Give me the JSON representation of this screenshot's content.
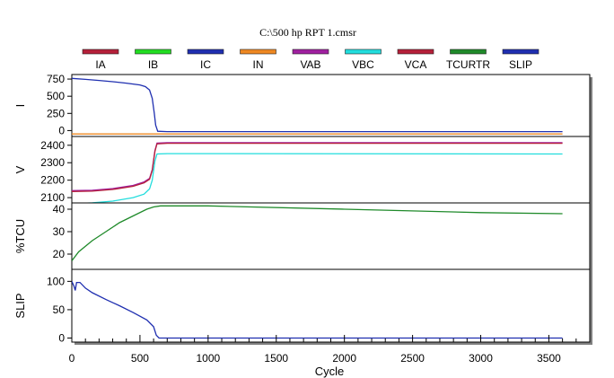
{
  "chart_data": {
    "type": "line",
    "title": "C:\\500 hp RPT 1.cmsr",
    "xlabel": "Cycle",
    "x_ticks": [
      "0",
      "500",
      "1000",
      "1500",
      "2000",
      "2500",
      "3000",
      "3500"
    ],
    "xlim": [
      0,
      3800
    ],
    "legend_position": "top",
    "legend": [
      {
        "name": "IA",
        "color": "#b5203a"
      },
      {
        "name": "IB",
        "color": "#22dd22"
      },
      {
        "name": "IC",
        "color": "#1f2fb0"
      },
      {
        "name": "IN",
        "color": "#ee8822"
      },
      {
        "name": "VAB",
        "color": "#a020a0"
      },
      {
        "name": "VBC",
        "color": "#22dddd"
      },
      {
        "name": "VCA",
        "color": "#b5203a"
      },
      {
        "name": "TCURTR",
        "color": "#1f8a2a"
      },
      {
        "name": "SLIP",
        "color": "#1f2fb0"
      }
    ],
    "panels": [
      {
        "ylabel": "I",
        "ylim": [
          -60,
          790
        ],
        "y_ticks": [
          "750",
          "500",
          "250",
          "0"
        ],
        "y_tick_values": [
          750,
          500,
          250,
          0
        ],
        "series": [
          {
            "name": "IC",
            "color": "#1f2fb0",
            "points": [
              [
                0,
                760
              ],
              [
                100,
                745
              ],
              [
                200,
                730
              ],
              [
                300,
                712
              ],
              [
                400,
                690
              ],
              [
                500,
                665
              ],
              [
                540,
                640
              ],
              [
                570,
                590
              ],
              [
                590,
                470
              ],
              [
                605,
                250
              ],
              [
                615,
                80
              ],
              [
                630,
                -10
              ],
              [
                700,
                -15
              ],
              [
                1500,
                -15
              ],
              [
                3600,
                -15
              ]
            ]
          },
          {
            "name": "IN",
            "color": "#ee8822",
            "points": [
              [
                0,
                -50
              ],
              [
                3600,
                -50
              ]
            ]
          }
        ]
      },
      {
        "ylabel": "V",
        "ylim": [
          2080,
          2440
        ],
        "y_ticks": [
          "2400",
          "2300",
          "2200",
          "2100"
        ],
        "y_tick_values": [
          2400,
          2300,
          2200,
          2100
        ],
        "series": [
          {
            "name": "VAB",
            "color": "#a020a0",
            "points": [
              [
                0,
                2140
              ],
              [
                150,
                2142
              ],
              [
                300,
                2152
              ],
              [
                450,
                2170
              ],
              [
                530,
                2190
              ],
              [
                570,
                2210
              ],
              [
                590,
                2260
              ],
              [
                610,
                2370
              ],
              [
                625,
                2412
              ],
              [
                700,
                2415
              ],
              [
                3600,
                2415
              ]
            ]
          },
          {
            "name": "VCA",
            "color": "#b5203a",
            "points": [
              [
                0,
                2135
              ],
              [
                150,
                2137
              ],
              [
                300,
                2147
              ],
              [
                450,
                2165
              ],
              [
                530,
                2185
              ],
              [
                570,
                2205
              ],
              [
                590,
                2255
              ],
              [
                610,
                2365
              ],
              [
                625,
                2408
              ],
              [
                700,
                2411
              ],
              [
                3600,
                2411
              ]
            ]
          },
          {
            "name": "VBC",
            "color": "#22dddd",
            "points": [
              [
                0,
                2065
              ],
              [
                150,
                2070
              ],
              [
                300,
                2080
              ],
              [
                450,
                2100
              ],
              [
                530,
                2120
              ],
              [
                570,
                2150
              ],
              [
                590,
                2200
              ],
              [
                610,
                2310
              ],
              [
                625,
                2350
              ],
              [
                700,
                2352
              ],
              [
                3600,
                2350
              ]
            ]
          }
        ]
      },
      {
        "ylabel": "%TCU",
        "ylim": [
          14,
          42
        ],
        "y_ticks": [
          "40",
          "30",
          "20"
        ],
        "y_tick_values": [
          40,
          30,
          20
        ],
        "series": [
          {
            "name": "TCURTR",
            "color": "#1f8a2a",
            "points": [
              [
                0,
                17
              ],
              [
                50,
                21
              ],
              [
                150,
                26
              ],
              [
                250,
                30
              ],
              [
                350,
                34
              ],
              [
                450,
                37
              ],
              [
                550,
                40
              ],
              [
                600,
                41
              ],
              [
                650,
                41.5
              ],
              [
                1000,
                41.5
              ],
              [
                2000,
                40
              ],
              [
                3000,
                38.5
              ],
              [
                3600,
                38
              ]
            ]
          }
        ]
      },
      {
        "ylabel": "SLIP",
        "ylim": [
          -4,
          118
        ],
        "y_ticks": [
          "100",
          "50",
          "0"
        ],
        "y_tick_values": [
          100,
          50,
          0
        ],
        "series": [
          {
            "name": "SLIP",
            "color": "#1f2fb0",
            "points": [
              [
                0,
                100
              ],
              [
                15,
                92
              ],
              [
                25,
                84
              ],
              [
                35,
                98
              ],
              [
                60,
                98
              ],
              [
                100,
                88
              ],
              [
                150,
                80
              ],
              [
                250,
                68
              ],
              [
                350,
                57
              ],
              [
                450,
                45
              ],
              [
                550,
                32
              ],
              [
                600,
                20
              ],
              [
                620,
                5
              ],
              [
                640,
                0
              ],
              [
                3600,
                0
              ]
            ]
          }
        ]
      }
    ]
  }
}
